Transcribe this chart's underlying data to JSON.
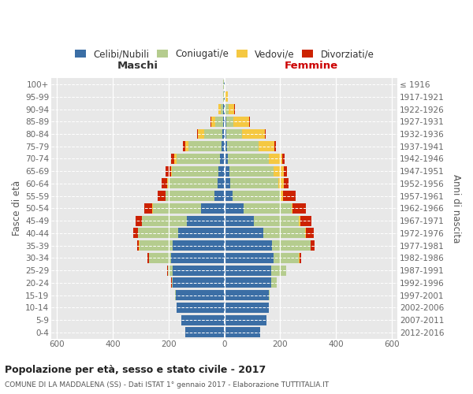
{
  "age_groups": [
    "0-4",
    "5-9",
    "10-14",
    "15-19",
    "20-24",
    "25-29",
    "30-34",
    "35-39",
    "40-44",
    "45-49",
    "50-54",
    "55-59",
    "60-64",
    "65-69",
    "70-74",
    "75-79",
    "80-84",
    "85-89",
    "90-94",
    "95-99",
    "100+"
  ],
  "birth_years": [
    "2012-2016",
    "2007-2011",
    "2002-2006",
    "1997-2001",
    "1992-1996",
    "1987-1991",
    "1982-1986",
    "1977-1981",
    "1972-1976",
    "1967-1971",
    "1962-1966",
    "1957-1961",
    "1952-1956",
    "1947-1951",
    "1942-1946",
    "1937-1941",
    "1932-1936",
    "1927-1931",
    "1922-1926",
    "1917-1921",
    "≤ 1916"
  ],
  "males_celibi": [
    140,
    155,
    170,
    175,
    185,
    185,
    190,
    185,
    165,
    135,
    85,
    35,
    25,
    22,
    15,
    10,
    8,
    5,
    4,
    2,
    2
  ],
  "males_coniugati": [
    0,
    0,
    0,
    2,
    4,
    18,
    80,
    120,
    145,
    160,
    172,
    175,
    178,
    165,
    155,
    120,
    65,
    28,
    10,
    3,
    2
  ],
  "males_vedovi": [
    0,
    0,
    0,
    0,
    0,
    0,
    0,
    1,
    1,
    2,
    2,
    2,
    3,
    5,
    10,
    10,
    22,
    15,
    8,
    1,
    0
  ],
  "males_divorziati": [
    0,
    0,
    0,
    0,
    1,
    2,
    5,
    8,
    15,
    22,
    28,
    28,
    20,
    18,
    10,
    8,
    2,
    2,
    1,
    0,
    0
  ],
  "females_nubili": [
    128,
    152,
    158,
    158,
    168,
    168,
    175,
    170,
    140,
    105,
    70,
    28,
    22,
    18,
    12,
    10,
    8,
    6,
    4,
    2,
    2
  ],
  "females_coniugate": [
    0,
    0,
    0,
    4,
    18,
    52,
    92,
    138,
    148,
    162,
    170,
    172,
    172,
    158,
    148,
    112,
    55,
    25,
    10,
    3,
    1
  ],
  "females_vedove": [
    0,
    0,
    0,
    0,
    0,
    0,
    1,
    1,
    3,
    4,
    5,
    10,
    20,
    38,
    48,
    58,
    82,
    58,
    22,
    6,
    2
  ],
  "females_divorziate": [
    0,
    0,
    0,
    0,
    1,
    2,
    8,
    15,
    30,
    42,
    48,
    45,
    15,
    10,
    8,
    5,
    3,
    2,
    1,
    0,
    0
  ],
  "colors_celibi": "#3b6ea5",
  "colors_coniugati": "#b5cc8e",
  "colors_vedovi": "#f5c842",
  "colors_divorziati": "#cc2200",
  "bg_color": "#e8e8e8",
  "xlim": 620,
  "title": "Popolazione per età, sesso e stato civile - 2017",
  "subtitle": "COMUNE DI LA MADDALENA (SS) - Dati ISTAT 1° gennaio 2017 - Elaborazione TUTTITALIA.IT",
  "legend_labels": [
    "Celibi/Nubili",
    "Coniugati/e",
    "Vedovi/e",
    "Divorziati/e"
  ],
  "label_maschi": "Maschi",
  "label_femmine": "Femmine",
  "label_maschi_color": "#333333",
  "label_femmine_color": "#cc0000",
  "ylabel_left": "Fasce di età",
  "ylabel_right": "Anni di nascita"
}
